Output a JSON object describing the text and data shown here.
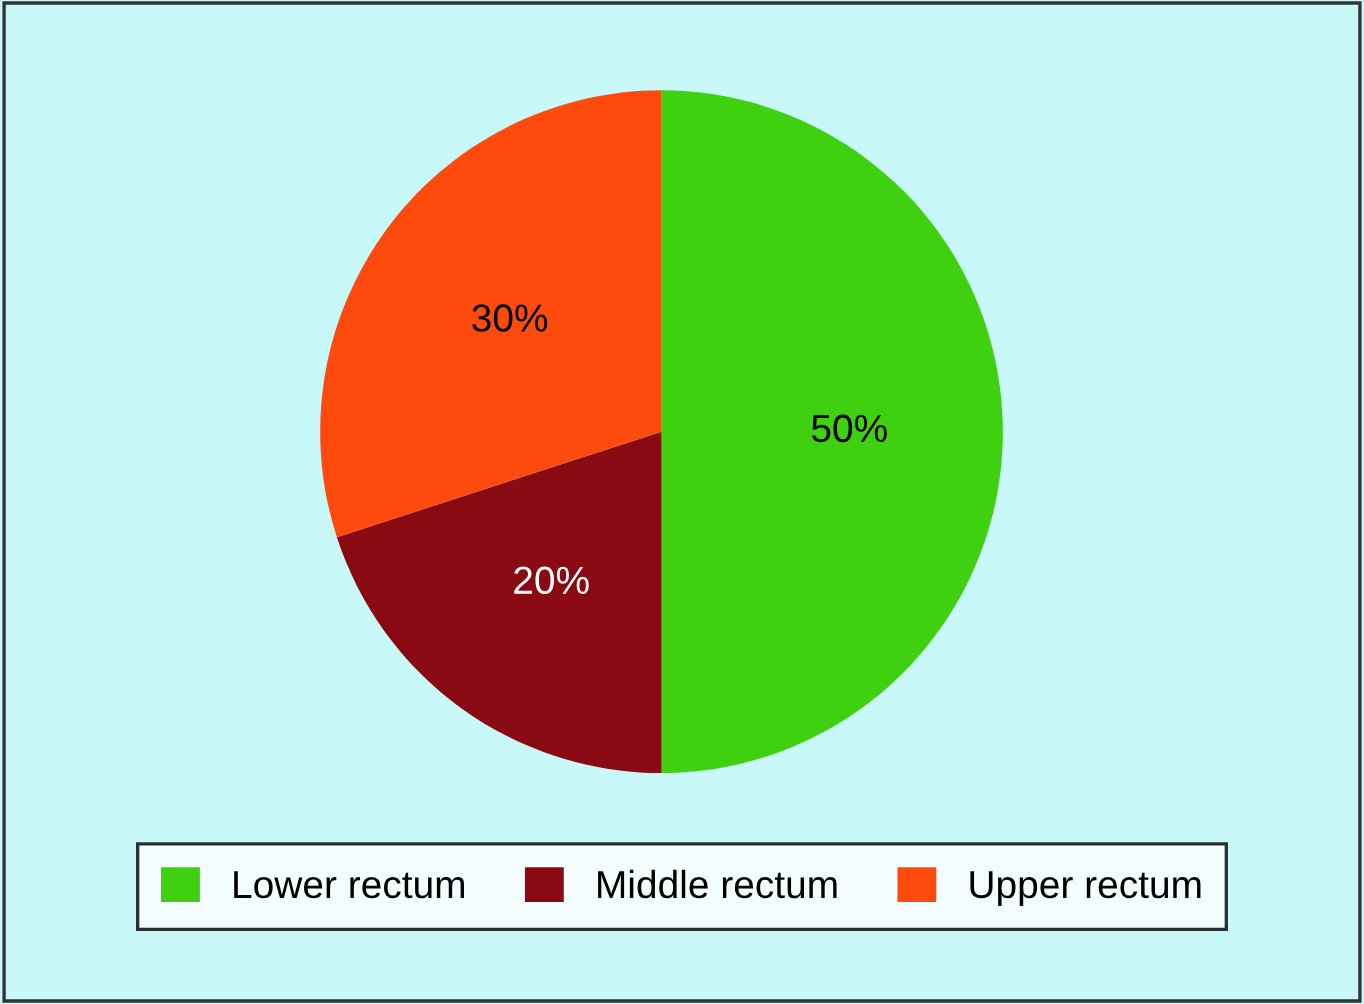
{
  "chart_data": {
    "type": "pie",
    "categories": [
      "Lower rectum",
      "Middle rectum",
      "Upper rectum"
    ],
    "values": [
      50,
      20,
      30
    ],
    "value_labels": [
      "50%",
      "20%",
      "30%"
    ],
    "colors": [
      "#3fd10f",
      "#8a0a14",
      "#ff4a0e"
    ],
    "legend": "bottom"
  }
}
